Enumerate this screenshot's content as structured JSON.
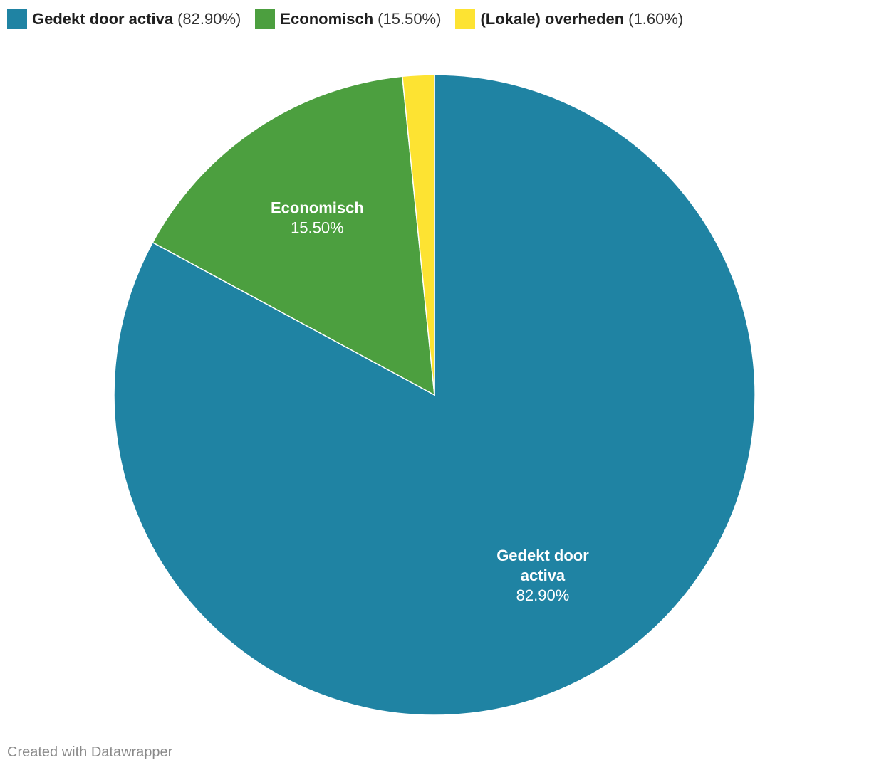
{
  "legend": [
    {
      "name": "Gedekt door activa",
      "pct": "(82.90%)",
      "color": "#1f83a3"
    },
    {
      "name": "Economisch",
      "pct": "(15.50%)",
      "color": "#4c9f3f"
    },
    {
      "name": "(Lokale) overheden",
      "pct": "(1.60%)",
      "color": "#fde332"
    }
  ],
  "chart_data": {
    "type": "pie",
    "start": "12 o'clock, clockwise",
    "slices": [
      {
        "label": "Gedekt door activa",
        "value": 82.9,
        "display": "82.90%",
        "color": "#1f83a3",
        "label_lines": [
          "Gedekt door",
          "activa"
        ]
      },
      {
        "label": "Economisch",
        "value": 15.5,
        "display": "15.50%",
        "color": "#4c9f3f",
        "label_lines": [
          "Economisch"
        ]
      },
      {
        "label": "(Lokale) overheden",
        "value": 1.6,
        "display": "1.60%",
        "color": "#fde332",
        "label_lines": []
      }
    ]
  },
  "footer": "Created with Datawrapper"
}
